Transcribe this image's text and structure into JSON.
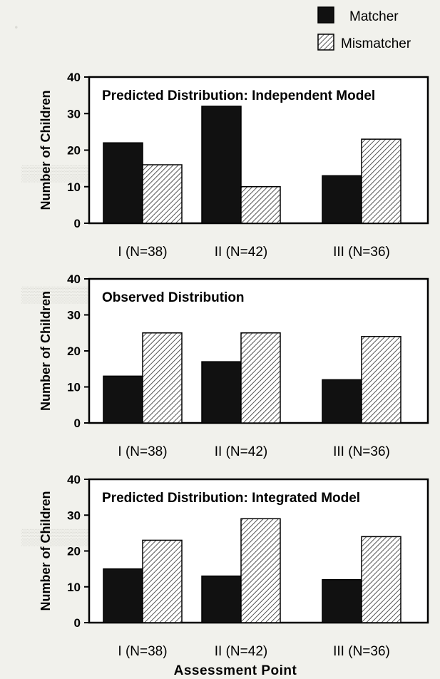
{
  "legend": {
    "matcher": "Matcher",
    "mismatcher": "Mismatcher"
  },
  "x_axis_title": "Assessment Point",
  "colors": {
    "matcher": "#111111",
    "mismatcher": "hatched",
    "background": "#f1f1ec"
  },
  "chart_data": [
    {
      "type": "bar",
      "title": "Predicted Distribution:  Independent Model",
      "categories": [
        "I (N=38)",
        "II (N=42)",
        "III (N=36)"
      ],
      "series": [
        {
          "name": "Matcher",
          "values": [
            22,
            32,
            13
          ]
        },
        {
          "name": "Mismatcher",
          "values": [
            16,
            10,
            23
          ]
        }
      ],
      "ylabel": "Number of Children",
      "ylim": [
        0,
        40
      ],
      "yticks": [
        0,
        10,
        20,
        30,
        40
      ],
      "legend_position": "top-right",
      "grid": false
    },
    {
      "type": "bar",
      "title": "Observed Distribution",
      "categories": [
        "I (N=38)",
        "II (N=42)",
        "III (N=36)"
      ],
      "series": [
        {
          "name": "Matcher",
          "values": [
            13,
            17,
            12
          ]
        },
        {
          "name": "Mismatcher",
          "values": [
            25,
            25,
            24
          ]
        }
      ],
      "ylabel": "Number of Children",
      "ylim": [
        0,
        40
      ],
      "yticks": [
        0,
        10,
        20,
        30,
        40
      ],
      "grid": false
    },
    {
      "type": "bar",
      "title": "Predicted Distribution:  Integrated Model",
      "categories": [
        "I (N=38)",
        "II (N=42)",
        "III (N=36)"
      ],
      "series": [
        {
          "name": "Matcher",
          "values": [
            15,
            13,
            12
          ]
        },
        {
          "name": "Mismatcher",
          "values": [
            23,
            29,
            24
          ]
        }
      ],
      "ylabel": "Number of Children",
      "xlabel": "Assessment Point",
      "ylim": [
        0,
        40
      ],
      "yticks": [
        0,
        10,
        20,
        30,
        40
      ],
      "grid": false
    }
  ]
}
